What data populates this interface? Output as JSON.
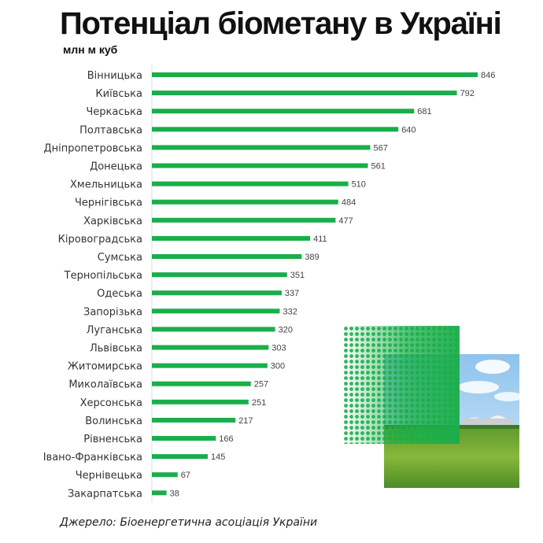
{
  "header": {
    "title": "Потенціал біометану в Україні",
    "unit": "млн м куб"
  },
  "footer": {
    "source": "Джерело: Біоенергетична асоціація України"
  },
  "colors": {
    "bar": "#1aae4a",
    "axis": "#dddddd",
    "label": "#444444"
  },
  "chart_data": {
    "type": "bar",
    "orientation": "horizontal",
    "sorted": "descending",
    "grid": false,
    "ylabel": "млн м куб",
    "xlim": [
      0,
      846
    ],
    "categories": [
      "Вінницька",
      "Київська",
      "Черкаська",
      "Полтавська",
      "Дніпропетровська",
      "Донецька",
      "Хмельницька",
      "Чернігівська",
      "Харківська",
      "Кіровоградська",
      "Сумська",
      "Тернопільська",
      "Одеська",
      "Запорізька",
      "Луганська",
      "Львівська",
      "Житомирська",
      "Миколаївська",
      "Херсонська",
      "Волинська",
      "Рівненська",
      "Івано-Франківська",
      "Чернівецька",
      "Закарпатська"
    ],
    "values": [
      846,
      792,
      681,
      640,
      567,
      561,
      510,
      484,
      477,
      411,
      389,
      351,
      337,
      332,
      320,
      303,
      300,
      257,
      251,
      217,
      166,
      145,
      67,
      38
    ]
  }
}
